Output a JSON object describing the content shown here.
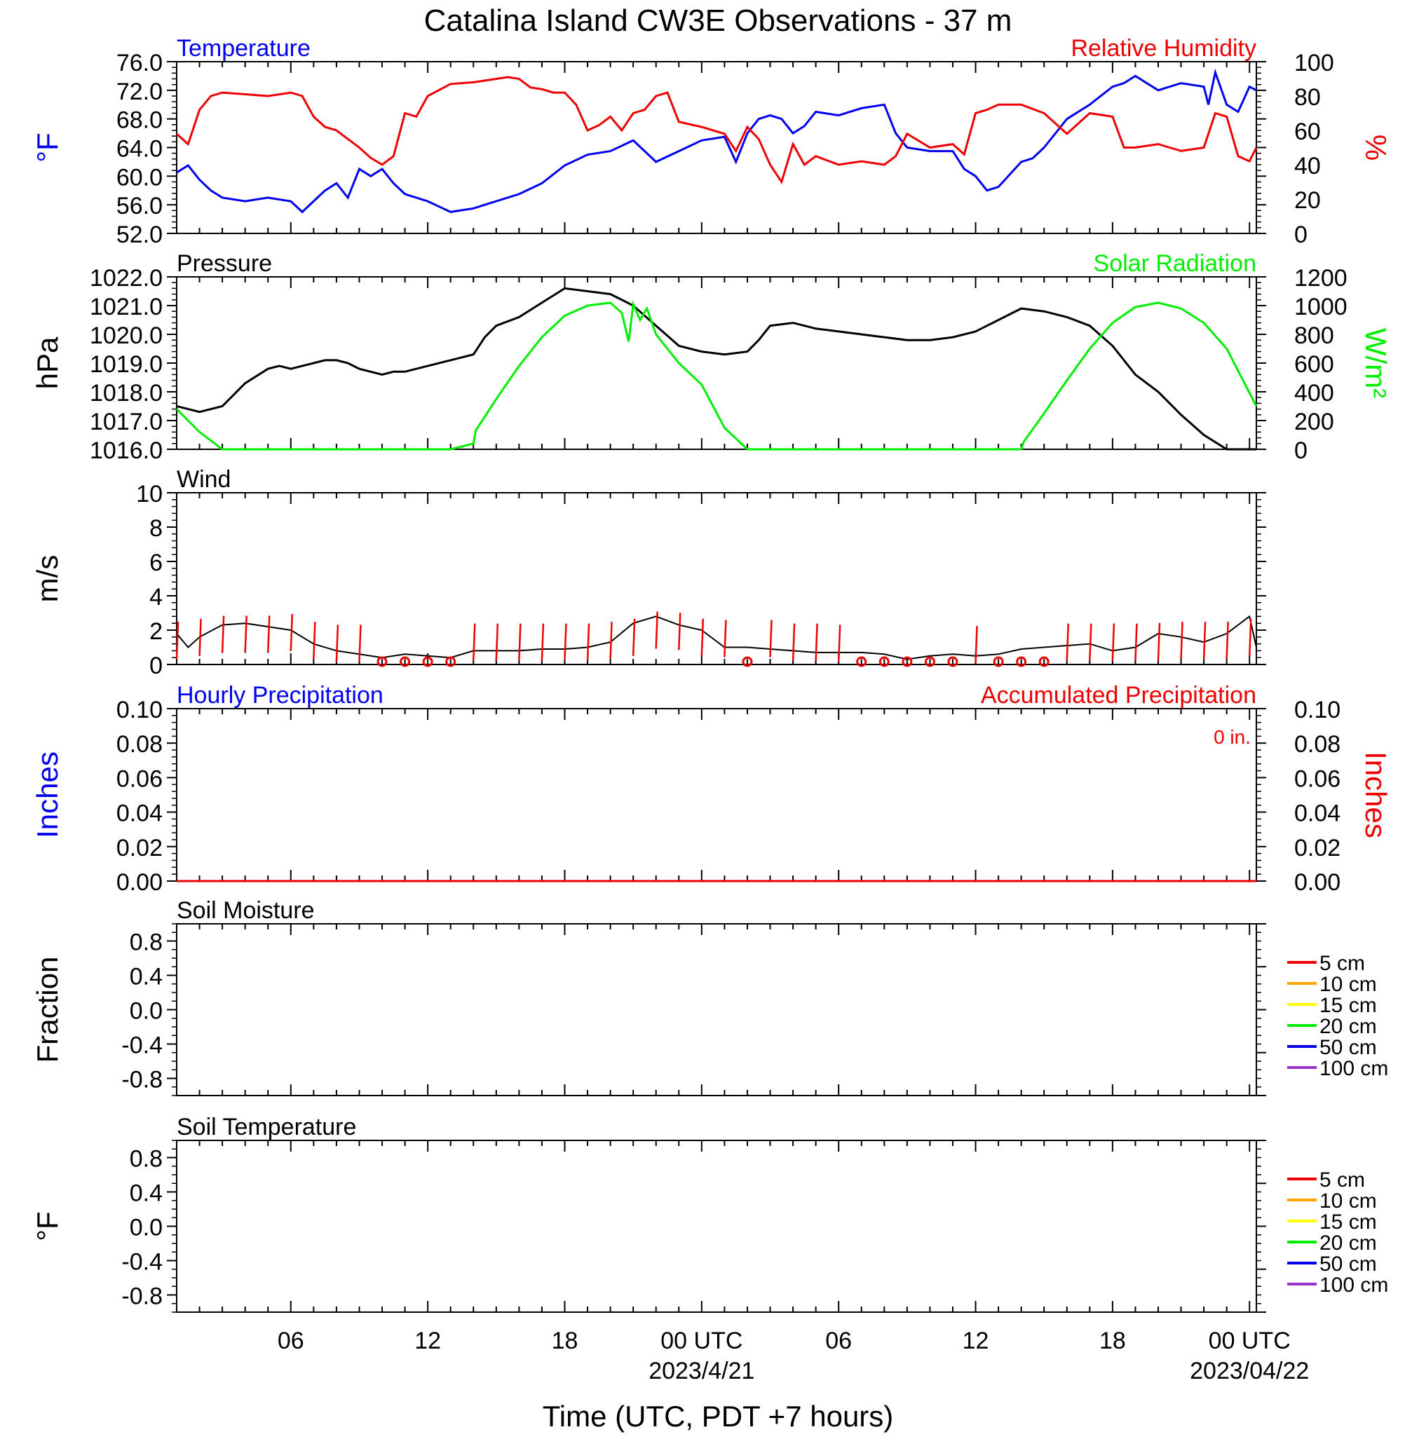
{
  "title": "Catalina Island CW3E Observations - 37 m",
  "xlabel": "Time (UTC, PDT +7 hours)",
  "x_ticks": [
    {
      "hour": 6,
      "label": "06",
      "sublabel": ""
    },
    {
      "hour": 12,
      "label": "12",
      "sublabel": ""
    },
    {
      "hour": 18,
      "label": "18",
      "sublabel": ""
    },
    {
      "hour": 24,
      "label": "00 UTC",
      "sublabel": "2023/4/21"
    },
    {
      "hour": 30,
      "label": "06",
      "sublabel": ""
    },
    {
      "hour": 36,
      "label": "12",
      "sublabel": ""
    },
    {
      "hour": 42,
      "label": "18",
      "sublabel": ""
    },
    {
      "hour": 48,
      "label": "00 UTC",
      "sublabel": "2023/04/22"
    }
  ],
  "colors": {
    "temperature": "#0000ee",
    "humidity": "#ee0000",
    "pressure": "#000000",
    "solar": "#00ee00",
    "wind": "#000000",
    "barb": "#ee0000",
    "precip_hourly": "#0000ee",
    "precip_acc": "#ee0000"
  },
  "chart_data": [
    {
      "type": "line",
      "id": "temp-rh",
      "title_left": "Temperature",
      "title_right": "Relative Humidity",
      "ylabel_left": "°F",
      "ylabel_right": "%",
      "ylim_left": [
        52,
        76
      ],
      "ylim_right": [
        0,
        100
      ],
      "yticks_left": [
        "76.0",
        "72.0",
        "68.0",
        "64.0",
        "60.0",
        "56.0",
        "52.0"
      ],
      "yticks_right": [
        "100",
        "80",
        "60",
        "40",
        "20",
        "0"
      ],
      "series": [
        {
          "name": "Temperature",
          "axis": "left",
          "color_key": "temperature",
          "x": [
            1,
            1.5,
            2,
            2.5,
            3,
            4,
            5,
            6,
            6.5,
            7,
            7.5,
            8,
            8.5,
            9,
            9.5,
            10,
            10.5,
            11,
            12,
            13,
            14,
            15,
            16,
            17,
            18,
            19,
            20,
            21,
            22,
            23,
            24,
            25,
            25.5,
            26,
            26.5,
            27,
            27.5,
            28,
            28.5,
            29,
            30,
            31,
            32,
            32.5,
            33,
            34,
            35,
            35.5,
            36,
            36.5,
            37,
            38,
            38.5,
            39,
            40,
            41,
            42,
            42.5,
            43,
            44,
            45,
            46,
            46.2,
            46.5,
            47,
            47.5,
            48,
            48.3
          ],
          "y": [
            60.5,
            61.5,
            59.5,
            58,
            57,
            56.5,
            57,
            56.5,
            55,
            56.5,
            58,
            59,
            57,
            61,
            60,
            61,
            59,
            57.5,
            56.5,
            55,
            55.5,
            56.5,
            57.5,
            59,
            61.5,
            63,
            63.5,
            65,
            62,
            63.5,
            65,
            65.5,
            62,
            66,
            68,
            68.5,
            68,
            66,
            67,
            69,
            68.5,
            69.5,
            70,
            66,
            64,
            63.5,
            63.5,
            61,
            60,
            58,
            58.5,
            62,
            62.5,
            64,
            68,
            70,
            72.5,
            73,
            74,
            72,
            73,
            72.5,
            70,
            74.5,
            70,
            69,
            72.5,
            72
          ]
        },
        {
          "name": "Relative Humidity",
          "axis": "right",
          "color_key": "humidity",
          "x": [
            1,
            1.5,
            2,
            2.5,
            3,
            4,
            5,
            6,
            6.5,
            7,
            7.5,
            8,
            8.5,
            9,
            9.5,
            10,
            10.5,
            11,
            11.5,
            12,
            13,
            14,
            15,
            15.5,
            16,
            16.5,
            17,
            17.5,
            18,
            18.5,
            19,
            19.5,
            20,
            20.5,
            21,
            21.5,
            22,
            22.5,
            23,
            24,
            25,
            25.5,
            26,
            26.5,
            27,
            27.5,
            28,
            28.5,
            29,
            30,
            31,
            32,
            32.5,
            33,
            34,
            35,
            35.5,
            36,
            36.5,
            37,
            38,
            39,
            40,
            41,
            42,
            42.5,
            43,
            44,
            45,
            46,
            46.5,
            47,
            47.5,
            48,
            48.3
          ],
          "y": [
            58,
            52,
            72,
            80,
            82,
            81,
            80,
            82,
            80,
            68,
            62,
            60,
            55,
            50,
            44,
            40,
            45,
            70,
            68,
            80,
            87,
            88,
            90,
            91,
            90,
            85,
            84,
            82,
            82,
            75,
            60,
            63,
            68,
            60,
            70,
            72,
            80,
            82,
            65,
            62,
            58,
            48,
            62,
            55,
            40,
            30,
            52,
            40,
            45,
            40,
            42,
            40,
            45,
            58,
            50,
            52,
            46,
            70,
            72,
            75,
            75,
            70,
            58,
            70,
            68,
            50,
            50,
            52,
            48,
            50,
            70,
            68,
            45,
            42,
            50
          ]
        }
      ]
    },
    {
      "type": "line",
      "id": "pressure-solar",
      "title_left": "Pressure",
      "title_right": "Solar Radiation",
      "ylabel_left": "hPa",
      "ylabel_right": "W/m²",
      "ylim_left": [
        1016,
        1022
      ],
      "ylim_right": [
        0,
        1200
      ],
      "yticks_left": [
        "1022.0",
        "1021.0",
        "1020.0",
        "1019.0",
        "1018.0",
        "1017.0",
        "1016.0"
      ],
      "yticks_right": [
        "1200",
        "1000",
        "800",
        "600",
        "400",
        "200",
        "0"
      ],
      "series": [
        {
          "name": "Pressure",
          "axis": "left",
          "color_key": "pressure",
          "x": [
            1,
            1.5,
            2,
            3,
            4,
            5,
            5.5,
            6,
            6.5,
            7,
            7.5,
            8,
            8.5,
            9,
            10,
            10.5,
            11,
            12,
            13,
            14,
            14.5,
            15,
            16,
            17,
            18,
            19,
            20,
            21,
            22,
            23,
            24,
            25,
            26,
            26.5,
            27,
            28,
            29,
            30,
            31,
            32,
            33,
            34,
            35,
            36,
            37,
            38,
            39,
            40,
            41,
            42,
            43,
            44,
            45,
            46,
            47,
            48.3
          ],
          "y": [
            1017.5,
            1017.4,
            1017.3,
            1017.5,
            1018.3,
            1018.8,
            1018.9,
            1018.8,
            1018.9,
            1019.0,
            1019.1,
            1019.1,
            1019.0,
            1018.8,
            1018.6,
            1018.7,
            1018.7,
            1018.9,
            1019.1,
            1019.3,
            1019.9,
            1020.3,
            1020.6,
            1021.1,
            1021.6,
            1021.5,
            1021.4,
            1021.0,
            1020.3,
            1019.6,
            1019.4,
            1019.3,
            1019.4,
            1019.8,
            1020.3,
            1020.4,
            1020.2,
            1020.1,
            1020.0,
            1019.9,
            1019.8,
            1019.8,
            1019.9,
            1020.1,
            1020.5,
            1020.9,
            1020.8,
            1020.6,
            1020.3,
            1019.6,
            1018.6,
            1018.0,
            1017.2,
            1016.5,
            1016.0,
            1016.0
          ]
        },
        {
          "name": "Solar Radiation",
          "axis": "right",
          "color_key": "solar",
          "x": [
            1,
            2,
            3,
            4,
            5,
            6,
            7,
            8,
            9,
            10,
            11,
            12,
            13,
            14,
            14.1,
            15,
            16,
            17,
            18,
            19,
            20,
            20.5,
            20.8,
            21,
            21.3,
            21.6,
            22,
            23,
            24,
            24.5,
            25,
            26,
            26.1,
            28,
            30,
            32,
            34,
            36,
            38,
            38.1,
            39,
            40,
            41,
            42,
            43,
            44,
            45,
            46,
            47,
            48.3
          ],
          "y": [
            280,
            120,
            0,
            0,
            0,
            0,
            0,
            0,
            0,
            0,
            0,
            0,
            0,
            40,
            130,
            350,
            580,
            780,
            930,
            1000,
            1020,
            950,
            750,
            1010,
            900,
            980,
            800,
            600,
            450,
            300,
            150,
            0,
            0,
            0,
            0,
            0,
            0,
            0,
            0,
            50,
            250,
            480,
            700,
            880,
            990,
            1020,
            980,
            880,
            700,
            300
          ]
        }
      ]
    },
    {
      "type": "line",
      "id": "wind",
      "title_left": "Wind",
      "ylabel_left": "m/s",
      "ylim_left": [
        0,
        10
      ],
      "yticks_left": [
        "10",
        "8",
        "6",
        "4",
        "2",
        "0"
      ],
      "series": [
        {
          "name": "Wind",
          "axis": "left",
          "color_key": "wind",
          "x": [
            1,
            1.5,
            2,
            3,
            4,
            5,
            6,
            7,
            8,
            9,
            10,
            11,
            12,
            13,
            14,
            15,
            16,
            17,
            18,
            19,
            20,
            21,
            22,
            23,
            24,
            25,
            26,
            27,
            28,
            29,
            30,
            31,
            32,
            33,
            34,
            35,
            36,
            37,
            38,
            39,
            40,
            41,
            42,
            43,
            44,
            45,
            46,
            47,
            48,
            48.3
          ],
          "y": [
            1.8,
            1.0,
            1.6,
            2.3,
            2.4,
            2.2,
            2.0,
            1.2,
            0.8,
            0.6,
            0.4,
            0.6,
            0.5,
            0.4,
            0.8,
            0.8,
            0.8,
            0.9,
            0.9,
            1.0,
            1.3,
            2.4,
            2.8,
            2.3,
            2.0,
            1.0,
            1.0,
            0.9,
            0.8,
            0.7,
            0.7,
            0.7,
            0.6,
            0.3,
            0.5,
            0.6,
            0.5,
            0.6,
            0.9,
            1.0,
            1.1,
            1.2,
            0.8,
            1.0,
            1.8,
            1.6,
            1.3,
            1.8,
            2.8,
            1.0
          ]
        },
        {
          "name": "barbs",
          "axis": "left",
          "color_key": "barb",
          "x": [
            1,
            2,
            3,
            4,
            5,
            6,
            7,
            8,
            9,
            10,
            11,
            12,
            13,
            14,
            15,
            16,
            17,
            18,
            19,
            20,
            21,
            22,
            23,
            24,
            25,
            26,
            27,
            28,
            29,
            30,
            31,
            32,
            33,
            34,
            35,
            36,
            37,
            38,
            39,
            40,
            41,
            42,
            43,
            44,
            45,
            46,
            47,
            48
          ],
          "y": [
            1.5,
            2.0,
            2.5,
            2.5,
            2.5,
            2.8,
            1.5,
            1.0,
            1.0,
            0,
            0,
            0,
            0,
            1.2,
            1.2,
            1.2,
            1.2,
            1.2,
            1.2,
            1.5,
            2.0,
            3.2,
            3.0,
            2.0,
            1.8,
            0,
            1.8,
            1.2,
            1.2,
            1.0,
            0,
            0,
            0,
            0,
            0,
            0.8,
            0,
            0,
            0,
            1.2,
            1.2,
            1.2,
            1.2,
            1.3,
            1.5,
            1.5,
            1.5,
            2.0
          ]
        }
      ]
    },
    {
      "type": "line",
      "id": "precip",
      "title_left": "Hourly Precipitation",
      "title_right": "Accumulated Precipitation",
      "annotation": "0 in.",
      "ylabel_left": "Inches",
      "ylabel_right": "Inches",
      "ylim_left": [
        0,
        0.1
      ],
      "ylim_right": [
        0,
        0.1
      ],
      "yticks_left": [
        "0.10",
        "0.08",
        "0.06",
        "0.04",
        "0.02",
        "0.00"
      ],
      "yticks_right": [
        "0.10",
        "0.08",
        "0.06",
        "0.04",
        "0.02",
        "0.00"
      ],
      "series": [
        {
          "name": "Accumulated Precipitation",
          "axis": "left",
          "color_key": "precip_acc",
          "x": [
            1,
            48.3
          ],
          "y": [
            0,
            0
          ]
        }
      ]
    },
    {
      "type": "line",
      "id": "soil-moisture",
      "title_left": "Soil Moisture",
      "ylabel_left": "Fraction",
      "ylim_left": [
        -1,
        1
      ],
      "yticks_left": [
        "0.8",
        "0.4",
        "0.0",
        "-0.4",
        "-0.8"
      ],
      "legend": [
        {
          "label": "5 cm",
          "color": "#ee0000"
        },
        {
          "label": "10 cm",
          "color": "#ffa500"
        },
        {
          "label": "15 cm",
          "color": "#ffff00"
        },
        {
          "label": "20 cm",
          "color": "#00ee00"
        },
        {
          "label": "50 cm",
          "color": "#0000ee"
        },
        {
          "label": "100 cm",
          "color": "#9932cc"
        }
      ],
      "series": []
    },
    {
      "type": "line",
      "id": "soil-temperature",
      "title_left": "Soil Temperature",
      "ylabel_left": "°F",
      "ylim_left": [
        -1,
        1
      ],
      "yticks_left": [
        "0.8",
        "0.4",
        "0.0",
        "-0.4",
        "-0.8"
      ],
      "legend": [
        {
          "label": "5 cm",
          "color": "#ee0000"
        },
        {
          "label": "10 cm",
          "color": "#ffa500"
        },
        {
          "label": "15 cm",
          "color": "#ffff00"
        },
        {
          "label": "20 cm",
          "color": "#00ee00"
        },
        {
          "label": "50 cm",
          "color": "#0000ee"
        },
        {
          "label": "100 cm",
          "color": "#9932cc"
        }
      ],
      "series": []
    }
  ]
}
